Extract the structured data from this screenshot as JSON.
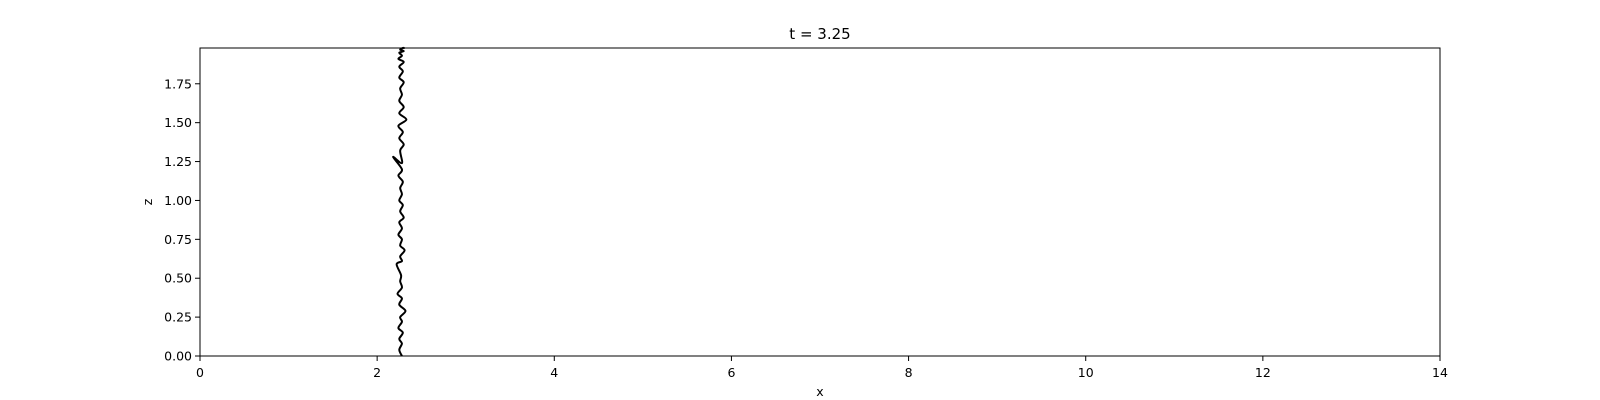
{
  "chart_data": {
    "type": "line",
    "title": "t = 3.25",
    "xlabel": "x",
    "ylabel": "z",
    "xlim": [
      0,
      14
    ],
    "ylim": [
      0,
      1.98
    ],
    "xticks": [
      0,
      2,
      4,
      6,
      8,
      10,
      12,
      14
    ],
    "xtick_labels": [
      "0",
      "2",
      "4",
      "6",
      "8",
      "10",
      "12",
      "14"
    ],
    "yticks": [
      0.0,
      0.25,
      0.5,
      0.75,
      1.0,
      1.25,
      1.5,
      1.75
    ],
    "ytick_labels": [
      "0.00",
      "0.25",
      "0.50",
      "0.75",
      "1.00",
      "1.25",
      "1.50",
      "1.75"
    ],
    "grid": false,
    "series": [
      {
        "name": "interface",
        "color": "#000000",
        "x": [
          2.28,
          2.25,
          2.28,
          2.25,
          2.29,
          2.24,
          2.28,
          2.26,
          2.32,
          2.25,
          2.28,
          2.23,
          2.28,
          2.26,
          2.27,
          2.22,
          2.28,
          2.26,
          2.31,
          2.26,
          2.28,
          2.24,
          2.28,
          2.25,
          2.3,
          2.26,
          2.29,
          2.25,
          2.28,
          2.26,
          2.29,
          2.24,
          2.28,
          2.18,
          2.28,
          2.26,
          2.3,
          2.25,
          2.29,
          2.24,
          2.33,
          2.25,
          2.3,
          2.25,
          2.28,
          2.26,
          2.3,
          2.25,
          2.29,
          2.25,
          2.3,
          2.24,
          2.28,
          2.25,
          2.3,
          2.26,
          2.29,
          2.31
        ],
        "z": [
          0.0,
          0.04,
          0.08,
          0.11,
          0.15,
          0.18,
          0.22,
          0.25,
          0.29,
          0.33,
          0.37,
          0.4,
          0.44,
          0.48,
          0.52,
          0.59,
          0.61,
          0.64,
          0.68,
          0.71,
          0.75,
          0.78,
          0.82,
          0.86,
          0.89,
          0.93,
          0.97,
          1.0,
          1.04,
          1.08,
          1.12,
          1.16,
          1.2,
          1.28,
          1.24,
          1.32,
          1.36,
          1.4,
          1.44,
          1.48,
          1.52,
          1.56,
          1.6,
          1.64,
          1.68,
          1.72,
          1.76,
          1.79,
          1.83,
          1.86,
          1.89,
          1.91,
          1.93,
          1.95,
          1.96,
          1.97,
          1.98,
          1.98
        ]
      }
    ]
  }
}
